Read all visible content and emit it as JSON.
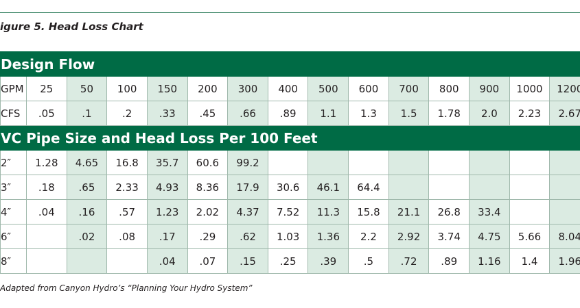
{
  "title": "igure 5. Head Loss Chart",
  "table": {
    "sections": [
      {
        "header": "Design Flow",
        "rows": [
          {
            "label": "GPM",
            "cells": [
              "25",
              "50",
              "100",
              "150",
              "200",
              "300",
              "400",
              "500",
              "600",
              "700",
              "800",
              "900",
              "1000",
              "1200"
            ]
          },
          {
            "label": "CFS",
            "cells": [
              ".05",
              ".1",
              ".2",
              ".33",
              ".45",
              ".66",
              ".89",
              "1.1",
              "1.3",
              "1.5",
              "1.78",
              "2.0",
              "2.23",
              "2.67"
            ]
          }
        ]
      },
      {
        "header": "VC Pipe Size and Head Loss Per 100 Feet",
        "rows": [
          {
            "label": "2″",
            "cells": [
              "1.28",
              "4.65",
              "16.8",
              "35.7",
              "60.6",
              "99.2",
              null,
              null,
              null,
              null,
              null,
              null,
              null,
              null
            ]
          },
          {
            "label": "3″",
            "cells": [
              ".18",
              ".65",
              "2.33",
              "4.93",
              "8.36",
              "17.9",
              "30.6",
              "46.1",
              "64.4",
              null,
              null,
              null,
              null,
              null
            ]
          },
          {
            "label": "4″",
            "cells": [
              ".04",
              ".16",
              ".57",
              "1.23",
              "2.02",
              "4.37",
              "7.52",
              "11.3",
              "15.8",
              "21.1",
              "26.8",
              "33.4",
              null,
              null
            ]
          },
          {
            "label": "6″",
            "cells": [
              null,
              ".02",
              ".08",
              ".17",
              ".29",
              ".62",
              "1.03",
              "1.36",
              "2.2",
              "2.92",
              "3.74",
              "4.75",
              "5.66",
              "8.04"
            ]
          },
          {
            "label": "8″",
            "cells": [
              null,
              null,
              null,
              ".04",
              ".07",
              ".15",
              ".25",
              ".39",
              ".5",
              ".72",
              ".89",
              "1.16",
              "1.4",
              "1.96"
            ]
          }
        ]
      }
    ]
  },
  "footnote": "Adapted from Canyon Hydro’s “Planning Your Hydro System”"
}
